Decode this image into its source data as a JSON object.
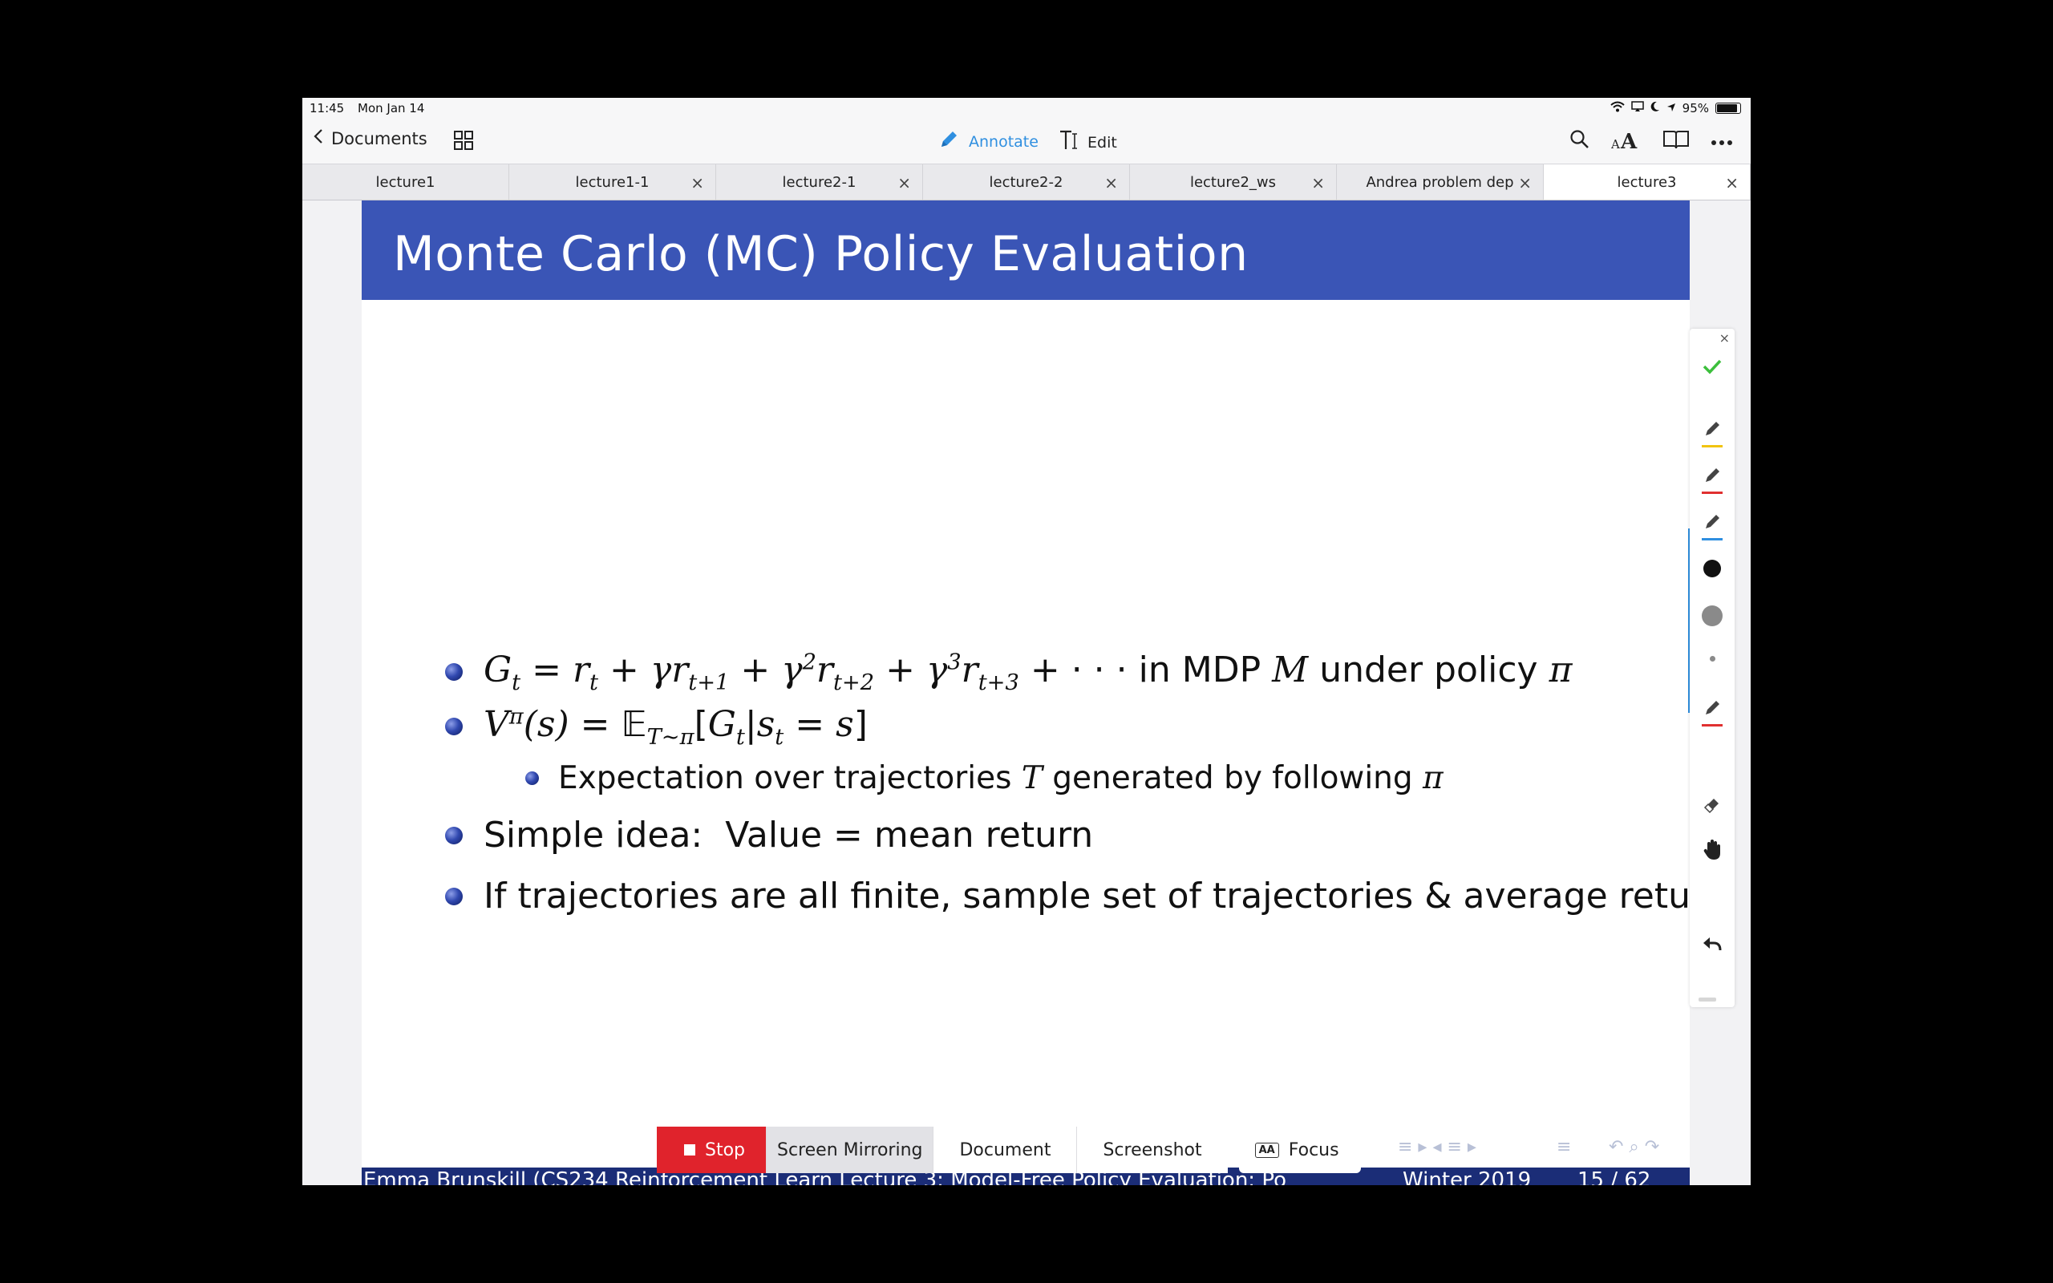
{
  "status": {
    "time": "11:45",
    "date": "Mon Jan 14",
    "battery": "95%",
    "battery_level": 0.95
  },
  "nav": {
    "back_label": "Documents",
    "annotate_label": "Annotate",
    "edit_label": "Edit"
  },
  "tabs": [
    {
      "label": "lecture1",
      "closable": false
    },
    {
      "label": "lecture1-1",
      "closable": true
    },
    {
      "label": "lecture2-1",
      "closable": true
    },
    {
      "label": "lecture2-2",
      "closable": true
    },
    {
      "label": "lecture2_ws",
      "closable": true
    },
    {
      "label": "Andrea problem dep",
      "closable": true
    },
    {
      "label": "lecture3",
      "closable": true,
      "active": true
    }
  ],
  "tab_close_glyph": "×",
  "slide": {
    "title": "Monte Carlo (MC) Policy Evaluation",
    "bullet1_suffix": "in MDP",
    "bullet1_under": "under policy",
    "subbullet_pre": "Expectation over trajectories",
    "subbullet_mid": "generated by following",
    "bullet3": "Simple idea:  Value = mean return",
    "bullet4": "If trajectories are all finite, sample set of trajectories & average returns",
    "footer_left": "Emma Brunskill (CS234 Reinforcement Learn Lecture 3: Model-Free Policy Evaluation: Po",
    "footer_date": "Winter 2019",
    "footer_page": "15 / 62"
  },
  "bottom_bar": {
    "stop_label": "Stop",
    "screen_mirroring_label": "Screen Mirroring",
    "document_label": "Document",
    "screenshot_label": "Screenshot",
    "focus_label": "Focus",
    "focus_icon_text": "AA"
  },
  "toolbar_colors": {
    "check": "#3cbf3c",
    "pen_yellow": "#f1c40f",
    "pen_red": "#e03030",
    "pen_blue": "#2f8fe0",
    "black": "#111111",
    "gray": "#8a8a8a",
    "accent": "#2f8fe0",
    "record_red": "#e0232c",
    "slide_blue": "#3a55b6"
  },
  "icons": {
    "back": "chevron-left-icon",
    "grid": "grid-icon",
    "annotate": "pencil-icon",
    "edit": "text-cursor-icon",
    "search": "search-icon",
    "font": "font-size-icon",
    "book": "book-icon",
    "more": "ellipsis-icon",
    "wifi": "wifi-icon",
    "location": "location-icon",
    "moon": "moon-icon",
    "battery": "battery-icon"
  }
}
